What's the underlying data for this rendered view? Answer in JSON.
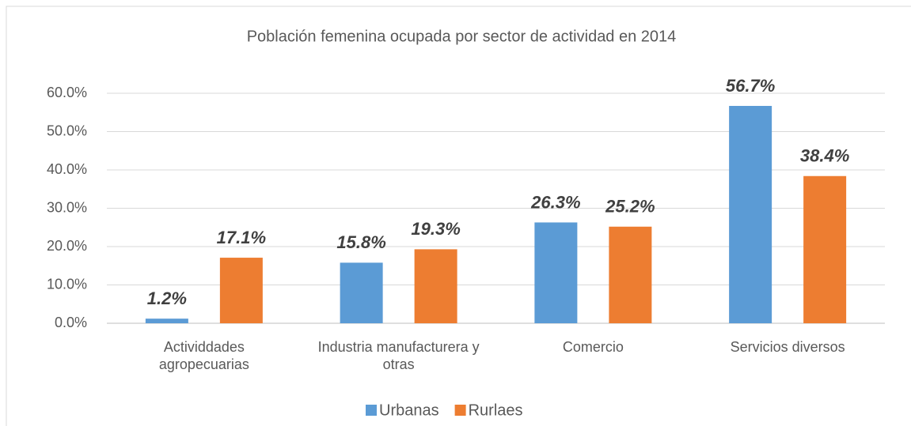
{
  "chart_data": {
    "type": "bar",
    "title": "Población femenina ocupada por sector de actividad en 2014",
    "categories": [
      "Actividdades agropecuarias",
      "Industria manufacturera y otras",
      "Comercio",
      "Servicios diversos"
    ],
    "series": [
      {
        "name": "Urbanas",
        "color": "#5b9bd5",
        "values": [
          1.2,
          15.8,
          26.3,
          56.7
        ],
        "value_labels": [
          "1.2%",
          "15.8%",
          "26.3%",
          "56.7%"
        ]
      },
      {
        "name": "Rurlaes",
        "color": "#ed7d31",
        "values": [
          17.1,
          19.3,
          25.2,
          38.4
        ],
        "value_labels": [
          "17.1%",
          "19.3%",
          "25.2%",
          "38.4%"
        ]
      }
    ],
    "ylim": [
      0,
      60
    ],
    "yticks": [
      {
        "value": 0,
        "label": "0.0%"
      },
      {
        "value": 10,
        "label": "10.0%"
      },
      {
        "value": 20,
        "label": "20.0%"
      },
      {
        "value": 30,
        "label": "30.0%"
      },
      {
        "value": 40,
        "label": "40.0%"
      },
      {
        "value": 50,
        "label": "50.0%"
      },
      {
        "value": 60,
        "label": "60.0%"
      }
    ],
    "grid": true,
    "legend": "bottom"
  }
}
